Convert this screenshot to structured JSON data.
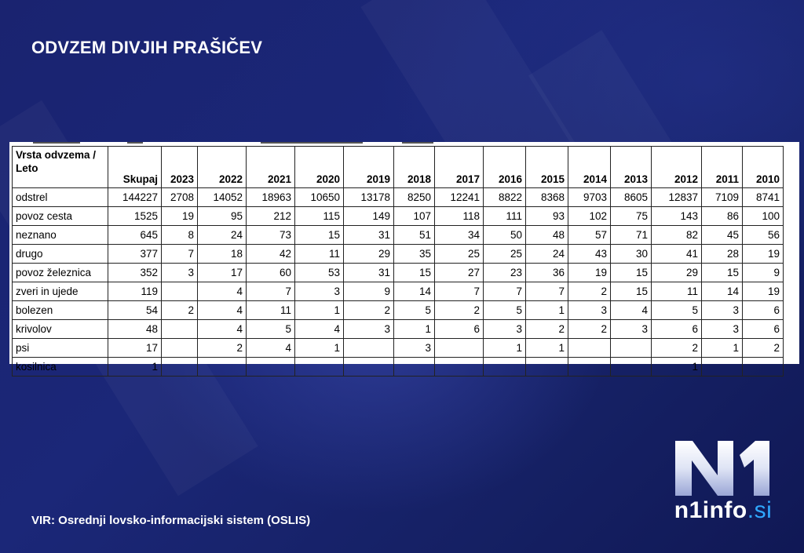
{
  "title": "ODVZEM DIVJIH PRAŠIČEV",
  "source": "VIR: Osrednji lovsko-informacijski sistem (OSLIS)",
  "logo": {
    "main": "N1",
    "text": "n1info",
    "suffix": ".si"
  },
  "chart_data": {
    "type": "table",
    "header_first": "Vrsta odvzema / Leto",
    "columns": [
      "Skupaj",
      "2023",
      "2022",
      "2021",
      "2020",
      "2019",
      "2018",
      "2017",
      "2016",
      "2015",
      "2014",
      "2013",
      "2012",
      "2011",
      "2010"
    ],
    "rows": [
      {
        "label": "odstrel",
        "values": [
          "144227",
          "2708",
          "14052",
          "18963",
          "10650",
          "13178",
          "8250",
          "12241",
          "8822",
          "8368",
          "9703",
          "8605",
          "12837",
          "7109",
          "8741"
        ]
      },
      {
        "label": "povoz cesta",
        "values": [
          "1525",
          "19",
          "95",
          "212",
          "115",
          "149",
          "107",
          "118",
          "111",
          "93",
          "102",
          "75",
          "143",
          "86",
          "100"
        ]
      },
      {
        "label": "neznano",
        "values": [
          "645",
          "8",
          "24",
          "73",
          "15",
          "31",
          "51",
          "34",
          "50",
          "48",
          "57",
          "71",
          "82",
          "45",
          "56"
        ]
      },
      {
        "label": "drugo",
        "values": [
          "377",
          "7",
          "18",
          "42",
          "11",
          "29",
          "35",
          "25",
          "25",
          "24",
          "43",
          "30",
          "41",
          "28",
          "19"
        ]
      },
      {
        "label": "povoz železnica",
        "values": [
          "352",
          "3",
          "17",
          "60",
          "53",
          "31",
          "15",
          "27",
          "23",
          "36",
          "19",
          "15",
          "29",
          "15",
          "9"
        ]
      },
      {
        "label": "zveri in ujede",
        "values": [
          "119",
          "",
          "4",
          "7",
          "3",
          "9",
          "14",
          "7",
          "7",
          "7",
          "2",
          "15",
          "11",
          "14",
          "19"
        ]
      },
      {
        "label": "bolezen",
        "values": [
          "54",
          "2",
          "4",
          "11",
          "1",
          "2",
          "5",
          "2",
          "5",
          "1",
          "3",
          "4",
          "5",
          "3",
          "6"
        ]
      },
      {
        "label": "krivolov",
        "values": [
          "48",
          "",
          "4",
          "5",
          "4",
          "3",
          "1",
          "6",
          "3",
          "2",
          "2",
          "3",
          "6",
          "3",
          "6"
        ]
      },
      {
        "label": "psi",
        "values": [
          "17",
          "",
          "2",
          "4",
          "1",
          "",
          "3",
          "",
          "1",
          "1",
          "",
          "",
          "2",
          "1",
          "2"
        ]
      },
      {
        "label": "kosilnica",
        "values": [
          "1",
          "",
          "",
          "",
          "",
          "",
          "",
          "",
          "",
          "",
          "",
          "",
          "1",
          "",
          ""
        ]
      }
    ]
  }
}
